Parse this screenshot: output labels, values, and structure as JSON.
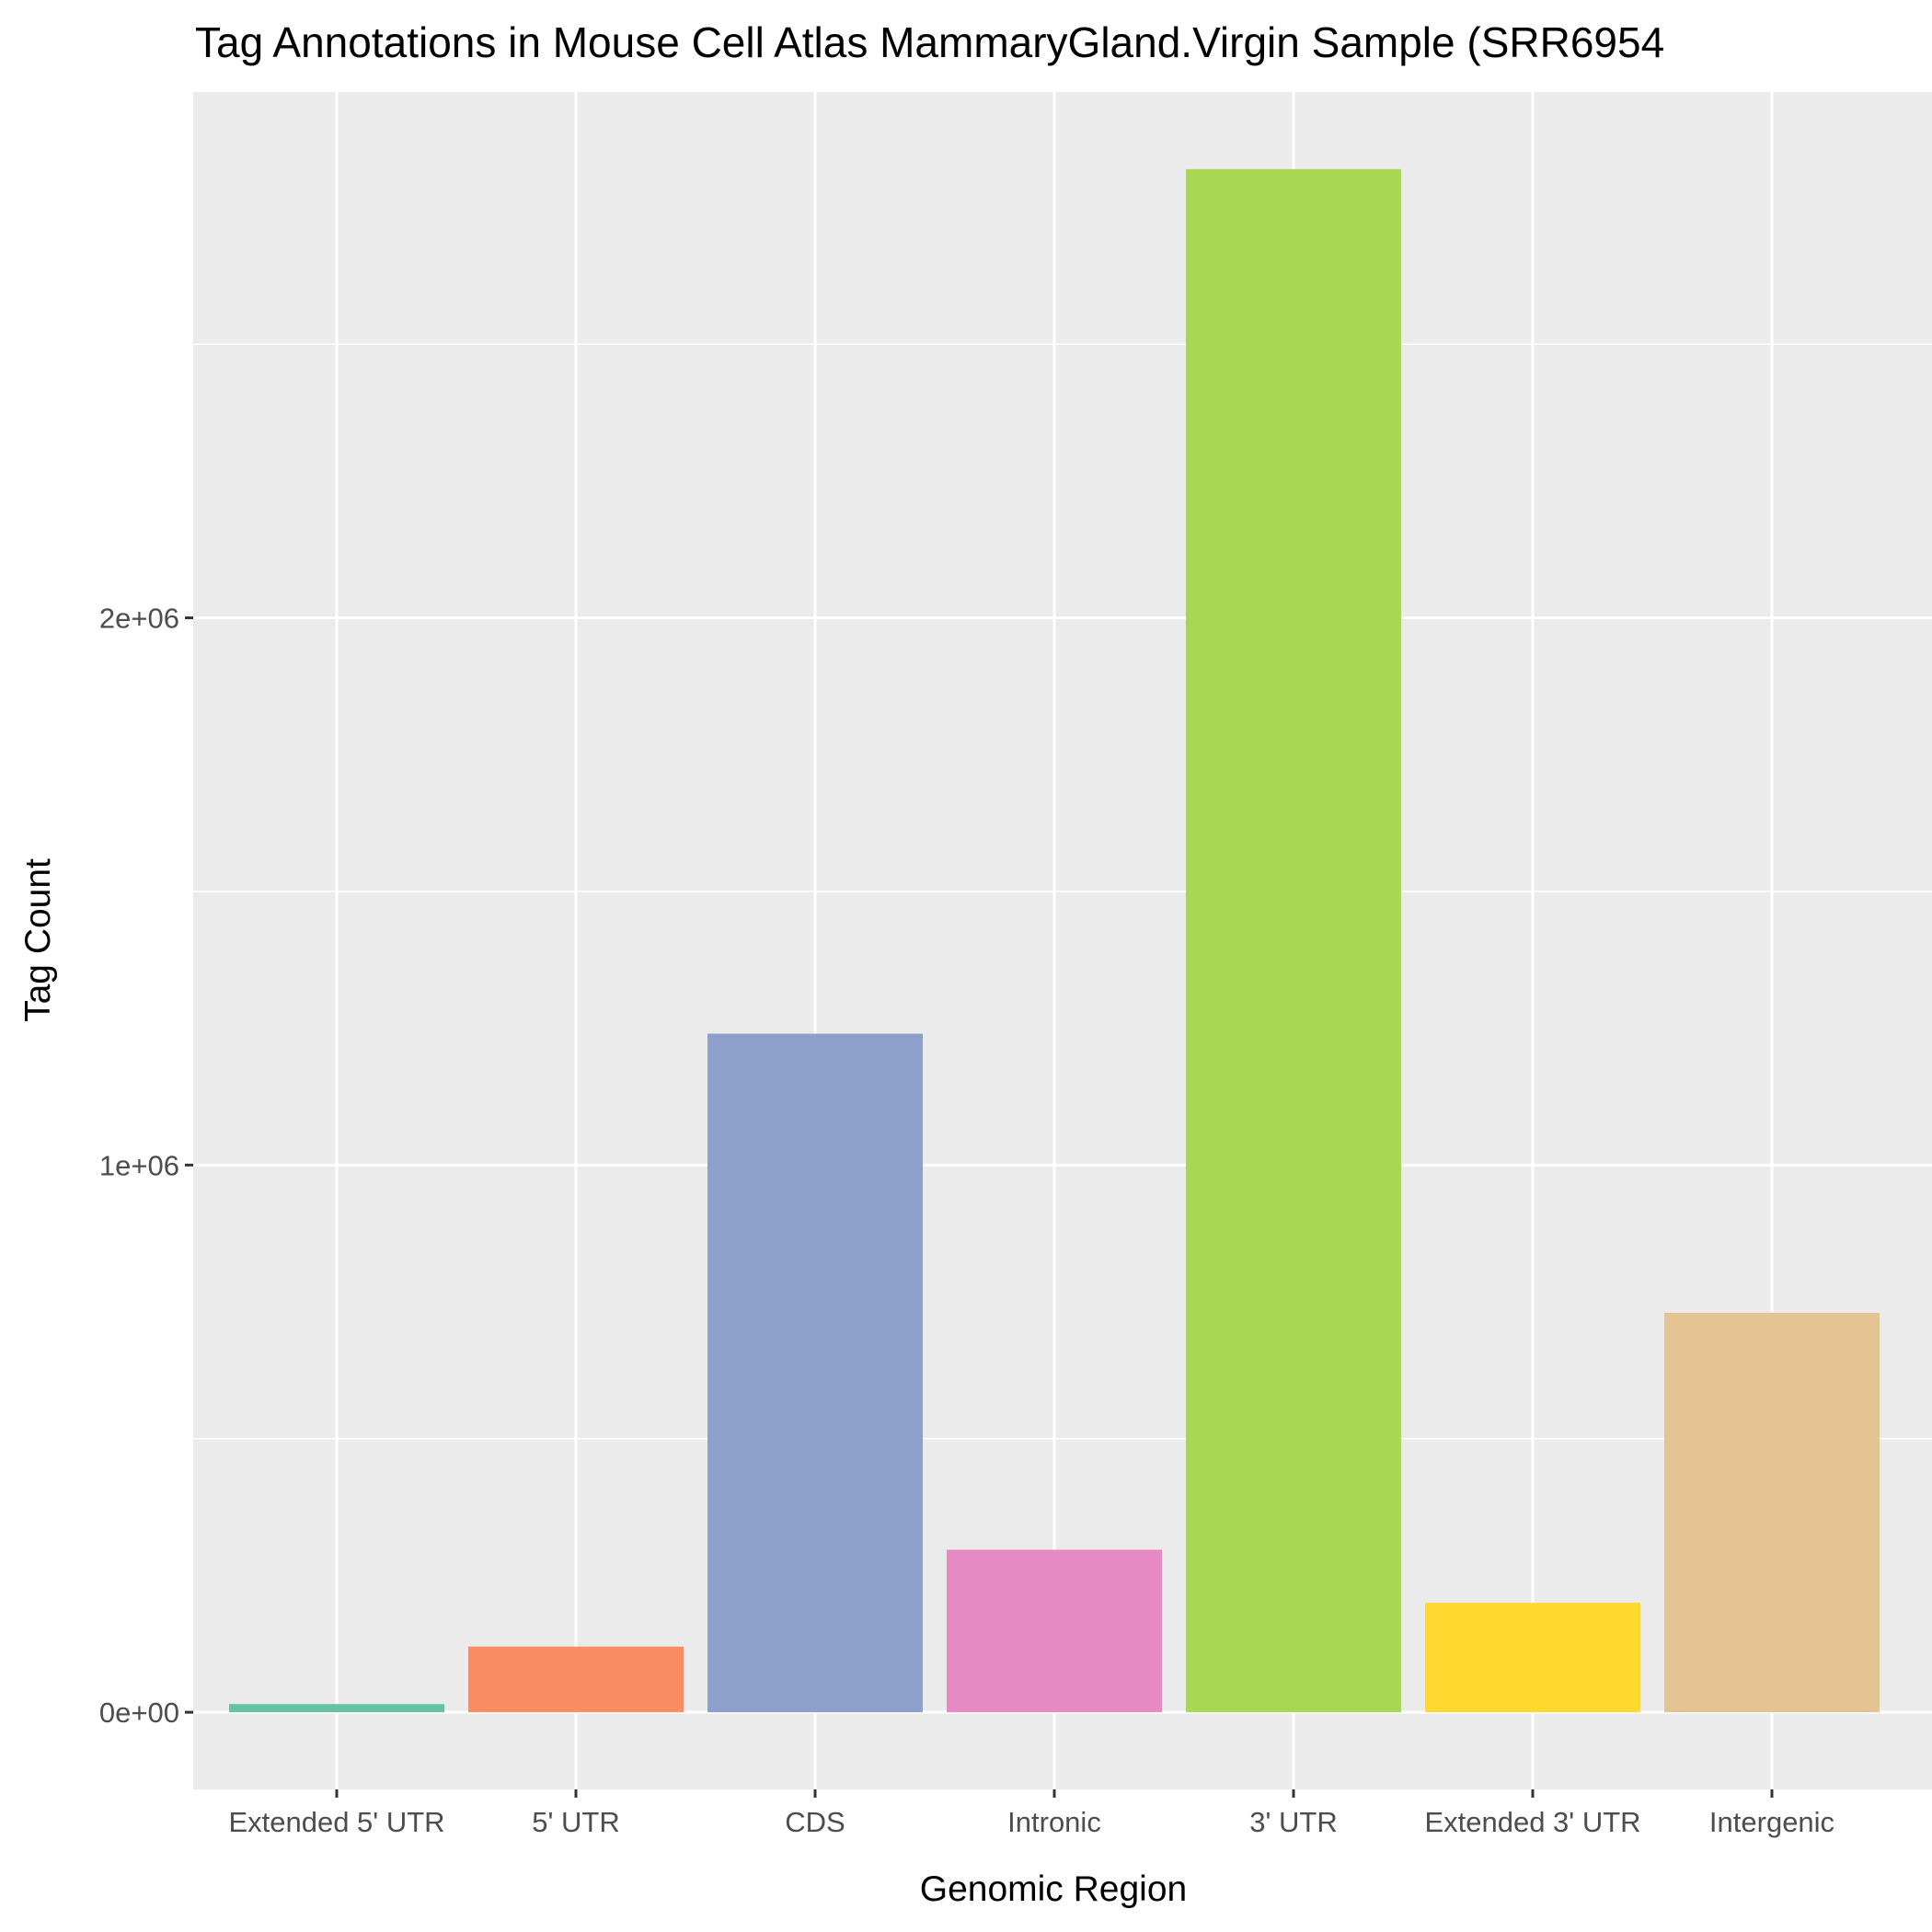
{
  "chart_data": {
    "type": "bar",
    "title": "Tag Annotations in Mouse Cell Atlas MammaryGland.Virgin Sample (SRR6954",
    "xlabel": "Genomic Region",
    "ylabel": "Tag Count",
    "categories": [
      "Extended 5' UTR",
      "5' UTR",
      "CDS",
      "Intronic",
      "3' UTR",
      "Extended 3' UTR",
      "Intergenic"
    ],
    "values": [
      15000,
      120000,
      1240000,
      297000,
      2820000,
      200000,
      730000
    ],
    "colors": [
      "#66c2a5",
      "#fc8d62",
      "#8da0cb",
      "#e78ac3",
      "#a6d854",
      "#ffd92f",
      "#e5c494"
    ],
    "yticks": [
      0,
      1000000,
      2000000
    ],
    "ytick_labels": [
      "0e+00",
      "1e+06",
      "2e+06"
    ],
    "ylim": [
      -141000,
      2961000
    ],
    "grid": true,
    "legend": "none",
    "panel_background": "#ebebeb"
  }
}
